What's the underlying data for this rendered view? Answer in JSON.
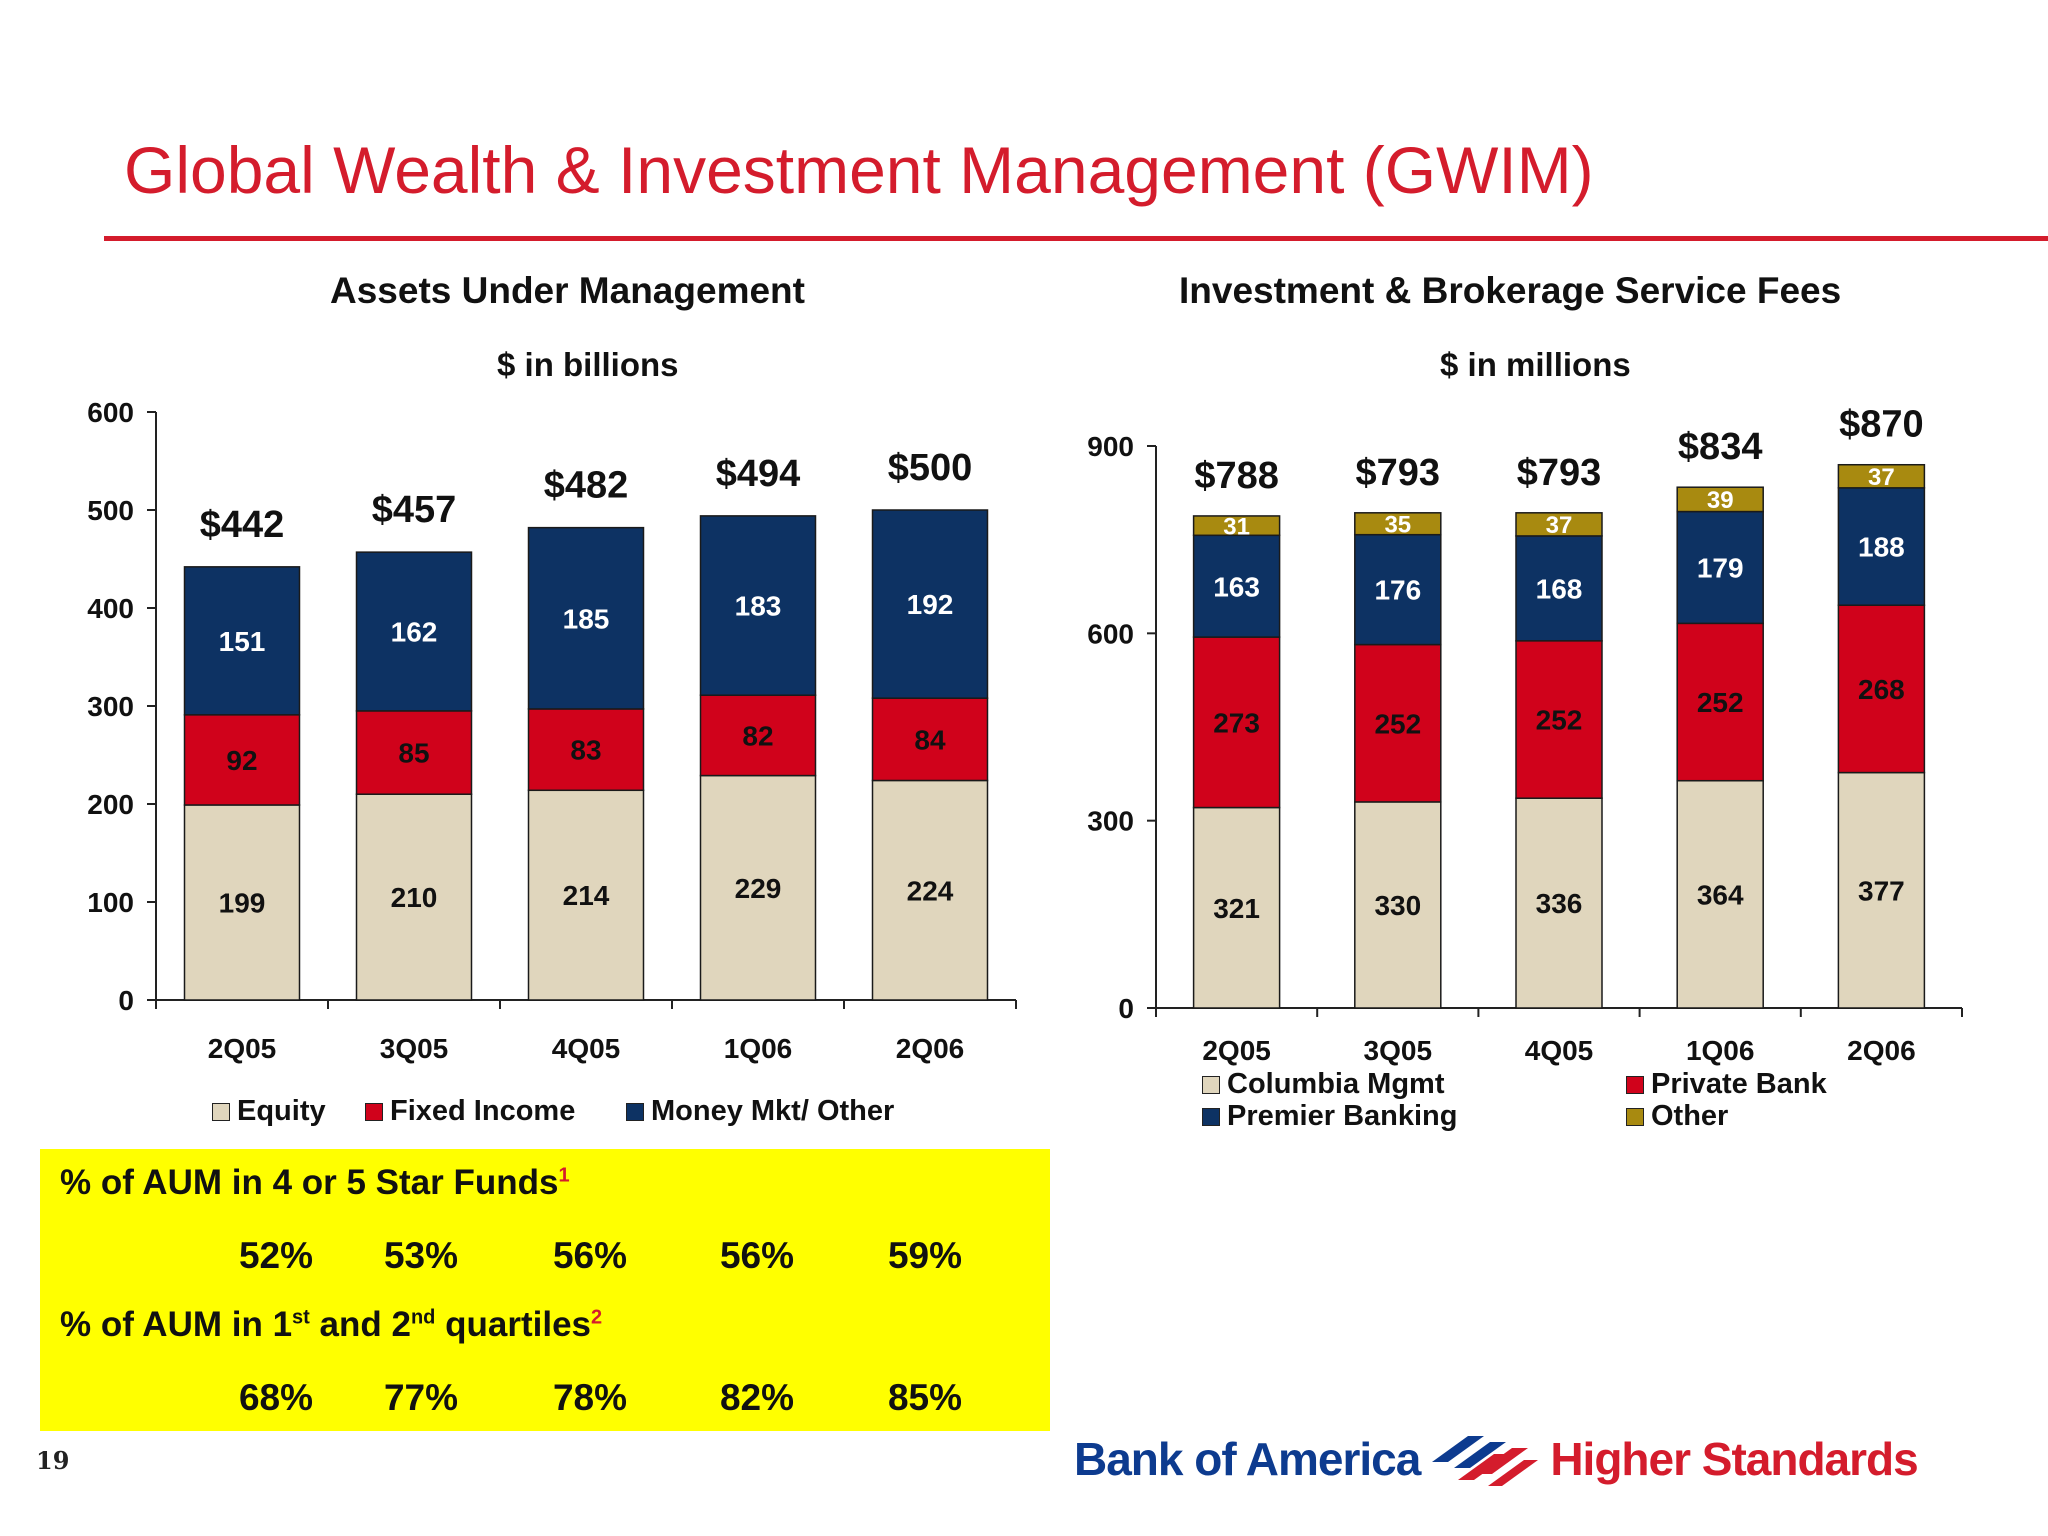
{
  "page": {
    "title": "Global Wealth & Investment Management (GWIM)",
    "page_number": "19",
    "brand": "Bank of America",
    "tagline": "Higher Standards",
    "colors": {
      "accent_red": "#d41c2c",
      "brand_blue": "#0d3b8f"
    }
  },
  "chart_data": [
    {
      "type": "bar",
      "stacked": true,
      "title": "Assets Under Management",
      "subtitle": "$ in billions",
      "categories": [
        "2Q05",
        "3Q05",
        "4Q05",
        "1Q06",
        "2Q06"
      ],
      "series": [
        {
          "name": "Equity",
          "color": "#e0d6bd",
          "label_color": "#111111",
          "values": [
            199,
            210,
            214,
            229,
            224
          ]
        },
        {
          "name": "Fixed Income",
          "color": "#d0021b",
          "label_color": "#111111",
          "values": [
            92,
            85,
            83,
            82,
            84
          ]
        },
        {
          "name": "Money Mkt/ Other",
          "color": "#0d3263",
          "label_color": "#ffffff",
          "values": [
            151,
            162,
            185,
            183,
            192
          ]
        }
      ],
      "totals": [
        "$442",
        "$457",
        "$482",
        "$494",
        "$500"
      ],
      "ylim": [
        0,
        600
      ],
      "yticks": [
        "0",
        "100",
        "200",
        "300",
        "400",
        "500",
        "600"
      ],
      "legend_position": "bottom",
      "grid": false
    },
    {
      "type": "bar",
      "stacked": true,
      "title": "Investment & Brokerage Service Fees",
      "subtitle": "$ in millions",
      "categories": [
        "2Q05",
        "3Q05",
        "4Q05",
        "1Q06",
        "2Q06"
      ],
      "series": [
        {
          "name": "Columbia Mgmt",
          "color": "#e0d6bd",
          "label_color": "#111111",
          "values": [
            321,
            330,
            336,
            364,
            377
          ]
        },
        {
          "name": "Private Bank",
          "color": "#d0021b",
          "label_color": "#111111",
          "values": [
            273,
            252,
            252,
            252,
            268
          ]
        },
        {
          "name": "Premier Banking",
          "color": "#0d3263",
          "label_color": "#ffffff",
          "values": [
            163,
            176,
            168,
            179,
            188
          ]
        },
        {
          "name": "Other",
          "color": "#a88a10",
          "label_color": "#ffffff",
          "values": [
            31,
            35,
            37,
            39,
            37
          ]
        }
      ],
      "totals": [
        "$788",
        "$793",
        "$793",
        "$834",
        "$870"
      ],
      "ylim": [
        0,
        900
      ],
      "yticks": [
        "0",
        "300",
        "600",
        "900"
      ],
      "legend_position": "bottom",
      "grid": false
    }
  ],
  "star_box": {
    "heading1_text": "% of AUM in 4 or 5 Star Funds",
    "heading1_footnote": "1",
    "row1": [
      "52%",
      "53%",
      "56%",
      "56%",
      "59%"
    ],
    "heading2_a": "% of AUM in 1",
    "heading2_sup1": "st",
    "heading2_b": " and 2",
    "heading2_sup2": "nd",
    "heading2_c": " quartiles",
    "heading2_footnote": "2",
    "row2": [
      "68%",
      "77%",
      "78%",
      "82%",
      "85%"
    ],
    "background_color": "#ffff00"
  }
}
